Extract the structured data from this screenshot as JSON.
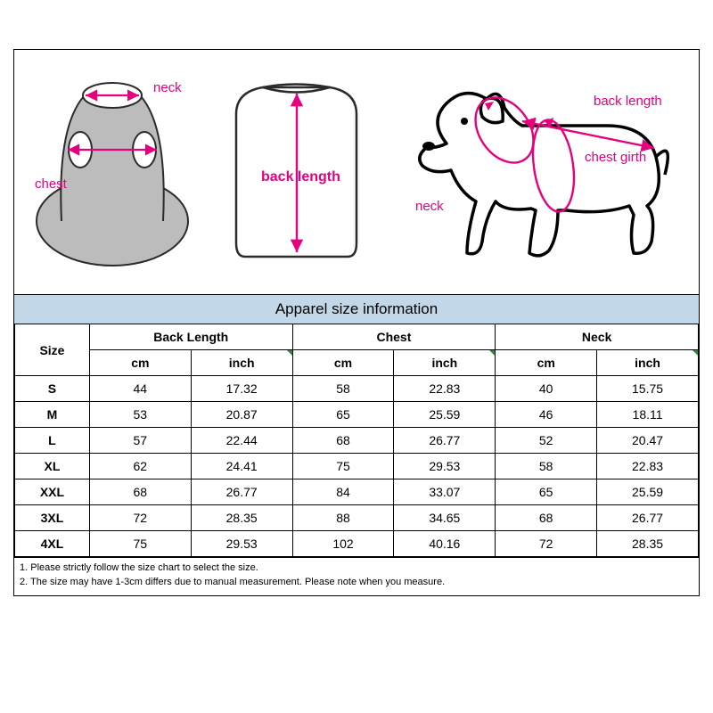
{
  "title": "Apparel size  information",
  "diagrams": {
    "vest": {
      "neck_label": "neck",
      "chest_label": "chest",
      "arrow_color": "#e6007e",
      "body_fill": "#bcbcbc",
      "outline": "#2b2b2b"
    },
    "back": {
      "label": "back length",
      "arrow_color": "#e6007e",
      "body_fill": "#ffffff",
      "outline": "#2b2b2b"
    },
    "dog": {
      "neck_label": "neck",
      "back_label": "back length",
      "chest_label": "chest girth",
      "arrow_color": "#e6007e",
      "outline": "#000000"
    }
  },
  "table": {
    "columns": {
      "size": "Size",
      "groups": [
        "Back Length",
        "Chest",
        "Neck"
      ],
      "units": [
        "cm",
        "inch"
      ]
    },
    "rows": [
      {
        "size": "S",
        "back_cm": "44",
        "back_in": "17.32",
        "chest_cm": "58",
        "chest_in": "22.83",
        "neck_cm": "40",
        "neck_in": "15.75"
      },
      {
        "size": "M",
        "back_cm": "53",
        "back_in": "20.87",
        "chest_cm": "65",
        "chest_in": "25.59",
        "neck_cm": "46",
        "neck_in": "18.11"
      },
      {
        "size": "L",
        "back_cm": "57",
        "back_in": "22.44",
        "chest_cm": "68",
        "chest_in": "26.77",
        "neck_cm": "52",
        "neck_in": "20.47"
      },
      {
        "size": "XL",
        "back_cm": "62",
        "back_in": "24.41",
        "chest_cm": "75",
        "chest_in": "29.53",
        "neck_cm": "58",
        "neck_in": "22.83"
      },
      {
        "size": "XXL",
        "back_cm": "68",
        "back_in": "26.77",
        "chest_cm": "84",
        "chest_in": "33.07",
        "neck_cm": "65",
        "neck_in": "25.59"
      },
      {
        "size": "3XL",
        "back_cm": "72",
        "back_in": "28.35",
        "chest_cm": "88",
        "chest_in": "34.65",
        "neck_cm": "68",
        "neck_in": "26.77"
      },
      {
        "size": "4XL",
        "back_cm": "75",
        "back_in": "29.53",
        "chest_cm": "102",
        "chest_in": "40.16",
        "neck_cm": "72",
        "neck_in": "28.35"
      }
    ]
  },
  "notes": [
    "1. Please strictly follow the size chart to select the size.",
    "2. The size may have 1-3cm differs due to manual measurement. Please note when you measure."
  ],
  "style": {
    "header_bg": "#c2d8e8",
    "border_color": "#000000",
    "tick_color": "#2a9030",
    "font_size_title": 17,
    "font_size_table": 14,
    "font_size_notes": 11
  }
}
